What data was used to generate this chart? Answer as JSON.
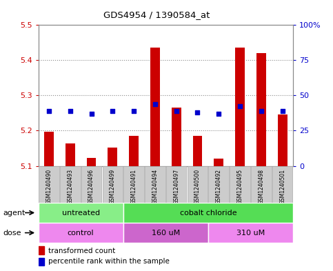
{
  "title": "GDS4954 / 1390584_at",
  "samples": [
    "GSM1240490",
    "GSM1240493",
    "GSM1240496",
    "GSM1240499",
    "GSM1240491",
    "GSM1240494",
    "GSM1240497",
    "GSM1240500",
    "GSM1240492",
    "GSM1240495",
    "GSM1240498",
    "GSM1240501"
  ],
  "bar_values": [
    5.197,
    5.163,
    5.122,
    5.152,
    5.185,
    5.435,
    5.265,
    5.185,
    5.121,
    5.435,
    5.42,
    5.245
  ],
  "bar_base": 5.1,
  "dot_values": [
    5.255,
    5.255,
    5.248,
    5.255,
    5.255,
    5.275,
    5.255,
    5.252,
    5.248,
    5.27,
    5.255,
    5.255
  ],
  "ylim": [
    5.1,
    5.5
  ],
  "yticks_left": [
    5.1,
    5.2,
    5.3,
    5.4,
    5.5
  ],
  "yticks_right": [
    0,
    25,
    50,
    75,
    100
  ],
  "yticks_right_labels": [
    "0",
    "25",
    "50",
    "75",
    "100%"
  ],
  "bar_color": "#cc0000",
  "dot_color": "#0000cc",
  "agent_groups": [
    {
      "label": "untreated",
      "start": 0,
      "end": 4,
      "color": "#88ee88"
    },
    {
      "label": "cobalt chloride",
      "start": 4,
      "end": 12,
      "color": "#55dd55"
    }
  ],
  "dose_groups": [
    {
      "label": "control",
      "start": 0,
      "end": 4,
      "color": "#ee88ee"
    },
    {
      "label": "160 uM",
      "start": 4,
      "end": 8,
      "color": "#cc66cc"
    },
    {
      "label": "310 uM",
      "start": 8,
      "end": 12,
      "color": "#ee88ee"
    }
  ],
  "legend_bar_label": "transformed count",
  "legend_dot_label": "percentile rank within the sample",
  "dotted_grid_color": "#888888",
  "grid_yticks": [
    5.2,
    5.3,
    5.4
  ],
  "background_color": "#ffffff",
  "plot_bg_color": "#ffffff",
  "tick_label_color_left": "#cc0000",
  "tick_label_color_right": "#0000cc",
  "agent_label": "agent",
  "dose_label": "dose",
  "box_color": "#cccccc",
  "box_edge_color": "#aaaaaa"
}
